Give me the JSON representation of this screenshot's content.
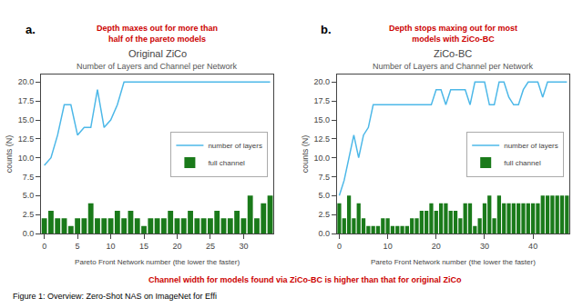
{
  "chart_data": [
    {
      "type": "bar",
      "title": "Original ZiCo",
      "subtitle": "Number of Layers and Channel per Network",
      "label": "a.",
      "annotations": [
        {
          "text": "Depth maxes out for more than\nhalf of the pareto models",
          "color": "#cc0000"
        }
      ],
      "x_label": "Pareto Front Network number (the lower the faster)",
      "y_label": "counts (N)",
      "x": [
        0,
        1,
        2,
        3,
        4,
        5,
        6,
        7,
        8,
        9,
        10,
        11,
        12,
        13,
        14,
        15,
        16,
        17,
        18,
        19,
        20,
        21,
        22,
        23,
        24,
        25,
        26,
        27,
        28,
        29,
        30,
        31,
        32,
        33,
        34
      ],
      "series": [
        {
          "name": "number of layers",
          "type": "line",
          "color": "#4db8e8",
          "values": [
            9,
            10,
            13,
            17,
            17,
            13,
            14,
            14,
            19,
            14,
            15,
            17,
            20,
            20,
            20,
            20,
            20,
            20,
            20,
            20,
            20,
            20,
            20,
            20,
            20,
            20,
            20,
            20,
            20,
            20,
            20,
            20,
            20,
            20,
            20
          ]
        },
        {
          "name": "full channel",
          "type": "bar",
          "color": "#1a7a1a",
          "values": [
            2,
            3,
            2,
            2,
            1,
            2,
            2,
            4,
            2,
            2,
            2,
            3,
            2,
            3,
            2,
            1,
            2,
            2,
            2,
            3,
            2,
            2,
            3,
            2,
            2,
            2,
            3,
            2,
            2,
            3,
            2,
            5,
            2,
            4,
            5
          ]
        }
      ],
      "xlim": [
        -0.5,
        34.5
      ],
      "xticks": [
        0,
        5,
        10,
        15,
        20,
        25,
        30
      ],
      "ylim": [
        0,
        21
      ],
      "yticks": [
        {
          "value": 0.0,
          "label": "0.0"
        },
        2.5,
        {
          "value": 5.0,
          "label": "5.0"
        },
        7.5,
        {
          "value": 10.0,
          "label": "10.0"
        },
        12.5,
        {
          "value": 15.0,
          "label": "15.0"
        },
        17.5,
        {
          "value": 20.0,
          "label": "20.0"
        }
      ],
      "legend": "right",
      "grid": false
    },
    {
      "type": "bar",
      "title": "ZiCo-BC",
      "subtitle": "Number of Layers and Channel per Network",
      "label": "b.",
      "annotations": [
        {
          "text": "Depth stops maxing out for most\nmodels with ZiCo-BC",
          "color": "#cc0000"
        }
      ],
      "x_label": "Pareto Front Network number (the lower the faster)",
      "y_label": "counts (N)",
      "x": [
        0,
        1,
        2,
        3,
        4,
        5,
        6,
        7,
        8,
        9,
        10,
        11,
        12,
        13,
        14,
        15,
        16,
        17,
        18,
        19,
        20,
        21,
        22,
        23,
        24,
        25,
        26,
        27,
        28,
        29,
        30,
        31,
        32,
        33,
        34,
        35,
        36,
        37,
        38,
        39,
        40,
        41,
        42,
        43,
        44,
        45,
        46,
        47
      ],
      "series": [
        {
          "name": "number of layers",
          "type": "line",
          "color": "#4db8e8",
          "values": [
            5,
            7,
            10,
            13,
            10,
            13,
            14,
            17,
            17,
            17,
            17,
            17,
            17,
            17,
            17,
            17,
            17,
            17,
            17,
            17,
            19,
            19,
            17,
            19,
            19,
            19,
            19,
            17,
            20,
            20,
            20,
            17,
            17,
            20,
            20,
            18,
            17,
            17,
            19,
            20,
            20,
            20,
            18,
            20,
            20,
            20,
            20,
            20
          ]
        },
        {
          "name": "full channel",
          "type": "bar",
          "color": "#1a7a1a",
          "values": [
            4,
            2,
            5,
            2,
            4,
            2,
            1,
            1,
            1,
            2,
            2,
            1,
            1,
            1,
            1,
            2,
            2,
            3,
            3,
            4,
            3,
            4,
            4,
            3,
            3,
            2,
            4,
            4,
            1,
            2,
            4,
            5,
            2,
            5,
            4,
            4,
            4,
            4,
            4,
            4,
            4,
            4,
            5,
            5,
            5,
            5,
            5,
            5
          ]
        }
      ],
      "xlim": [
        -0.5,
        47.5
      ],
      "xticks": [
        0,
        10,
        20,
        30,
        40
      ],
      "ylim": [
        0,
        21
      ],
      "yticks": [
        {
          "value": 0.0,
          "label": "0.0"
        },
        2.5,
        {
          "value": 5.0,
          "label": "5.0"
        },
        7.5,
        {
          "value": 10.0,
          "label": "10.0"
        },
        12.5,
        {
          "value": 15.0,
          "label": "15.0"
        },
        17.5,
        {
          "value": 20.0,
          "label": "20.0"
        }
      ],
      "legend": "right",
      "grid": false
    }
  ],
  "annotations": [
    {
      "text": "Channel width for models found via ZiCo-BC is higher than that for original ZiCo",
      "color": "#cc0000"
    }
  ],
  "caption": "Figure 1: Overview: Zero-Shot NAS on ImageNet for Effi"
}
